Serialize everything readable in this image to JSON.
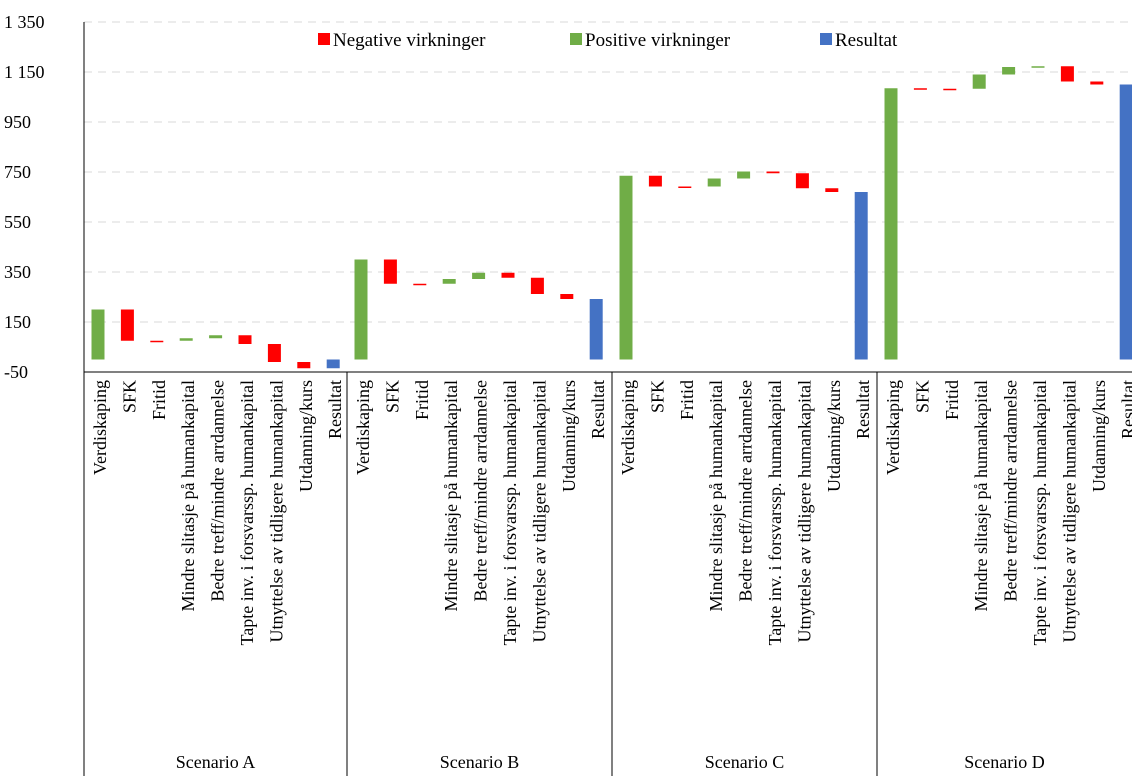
{
  "chart_data": {
    "type": "bar",
    "subtype": "waterfall",
    "title": "",
    "xlabel": "",
    "ylabel": "",
    "ylim": [
      -50,
      1350
    ],
    "yticks": [
      -50,
      150,
      350,
      550,
      750,
      950,
      1150,
      1350
    ],
    "ytick_labels": [
      "-50",
      "150",
      "350",
      "550",
      "750",
      "950",
      "1 150",
      "1 350"
    ],
    "grid": "horizontal, dashed",
    "legend_position": "top",
    "legend": [
      {
        "key": "negative",
        "label": "Negative virkninger",
        "color": "#ff0000"
      },
      {
        "key": "positive",
        "label": "Positive virkninger",
        "color": "#70ad47"
      },
      {
        "key": "result",
        "label": "Resultat",
        "color": "#4472c4"
      }
    ],
    "categories": [
      "Verdiskaping",
      "SFK",
      "Fritid",
      "Mindre slitasje på humankapital",
      "Bedre treff/mindre arrdannelse",
      "Tapte inv. i forsvarssp. humankapital",
      "Utnyttelse av tidligere humankapital",
      "Utdanning/kurs",
      "Resultat"
    ],
    "groups": [
      {
        "name": "Scenario A",
        "bars": [
          {
            "kind": "positive",
            "start": 0,
            "end": 200
          },
          {
            "kind": "negative",
            "start": 200,
            "end": 75
          },
          {
            "kind": "negative",
            "start": 75,
            "end": 75
          },
          {
            "kind": "positive",
            "start": 75,
            "end": 85
          },
          {
            "kind": "positive",
            "start": 85,
            "end": 97
          },
          {
            "kind": "negative",
            "start": 97,
            "end": 62
          },
          {
            "kind": "negative",
            "start": 62,
            "end": -10
          },
          {
            "kind": "negative",
            "start": -10,
            "end": -35
          },
          {
            "kind": "result",
            "start": 0,
            "end": -35
          }
        ]
      },
      {
        "name": "Scenario B",
        "bars": [
          {
            "kind": "positive",
            "start": 0,
            "end": 400
          },
          {
            "kind": "negative",
            "start": 400,
            "end": 303
          },
          {
            "kind": "negative",
            "start": 303,
            "end": 303
          },
          {
            "kind": "positive",
            "start": 303,
            "end": 322
          },
          {
            "kind": "positive",
            "start": 322,
            "end": 347
          },
          {
            "kind": "negative",
            "start": 347,
            "end": 327
          },
          {
            "kind": "negative",
            "start": 327,
            "end": 262
          },
          {
            "kind": "negative",
            "start": 262,
            "end": 242
          },
          {
            "kind": "result",
            "start": 0,
            "end": 242
          }
        ]
      },
      {
        "name": "Scenario C",
        "bars": [
          {
            "kind": "positive",
            "start": 0,
            "end": 735
          },
          {
            "kind": "negative",
            "start": 735,
            "end": 692
          },
          {
            "kind": "negative",
            "start": 692,
            "end": 692
          },
          {
            "kind": "positive",
            "start": 692,
            "end": 724
          },
          {
            "kind": "positive",
            "start": 724,
            "end": 752
          },
          {
            "kind": "negative",
            "start": 752,
            "end": 745
          },
          {
            "kind": "negative",
            "start": 745,
            "end": 685
          },
          {
            "kind": "negative",
            "start": 685,
            "end": 670
          },
          {
            "kind": "result",
            "start": 0,
            "end": 670
          }
        ]
      },
      {
        "name": "Scenario D",
        "bars": [
          {
            "kind": "positive",
            "start": 0,
            "end": 1085
          },
          {
            "kind": "negative",
            "start": 1085,
            "end": 1083
          },
          {
            "kind": "negative",
            "start": 1083,
            "end": 1083
          },
          {
            "kind": "positive",
            "start": 1083,
            "end": 1140
          },
          {
            "kind": "positive",
            "start": 1140,
            "end": 1170
          },
          {
            "kind": "positive",
            "start": 1170,
            "end": 1173
          },
          {
            "kind": "negative",
            "start": 1173,
            "end": 1112
          },
          {
            "kind": "negative",
            "start": 1112,
            "end": 1100
          },
          {
            "kind": "result",
            "start": 0,
            "end": 1100
          }
        ]
      }
    ]
  }
}
